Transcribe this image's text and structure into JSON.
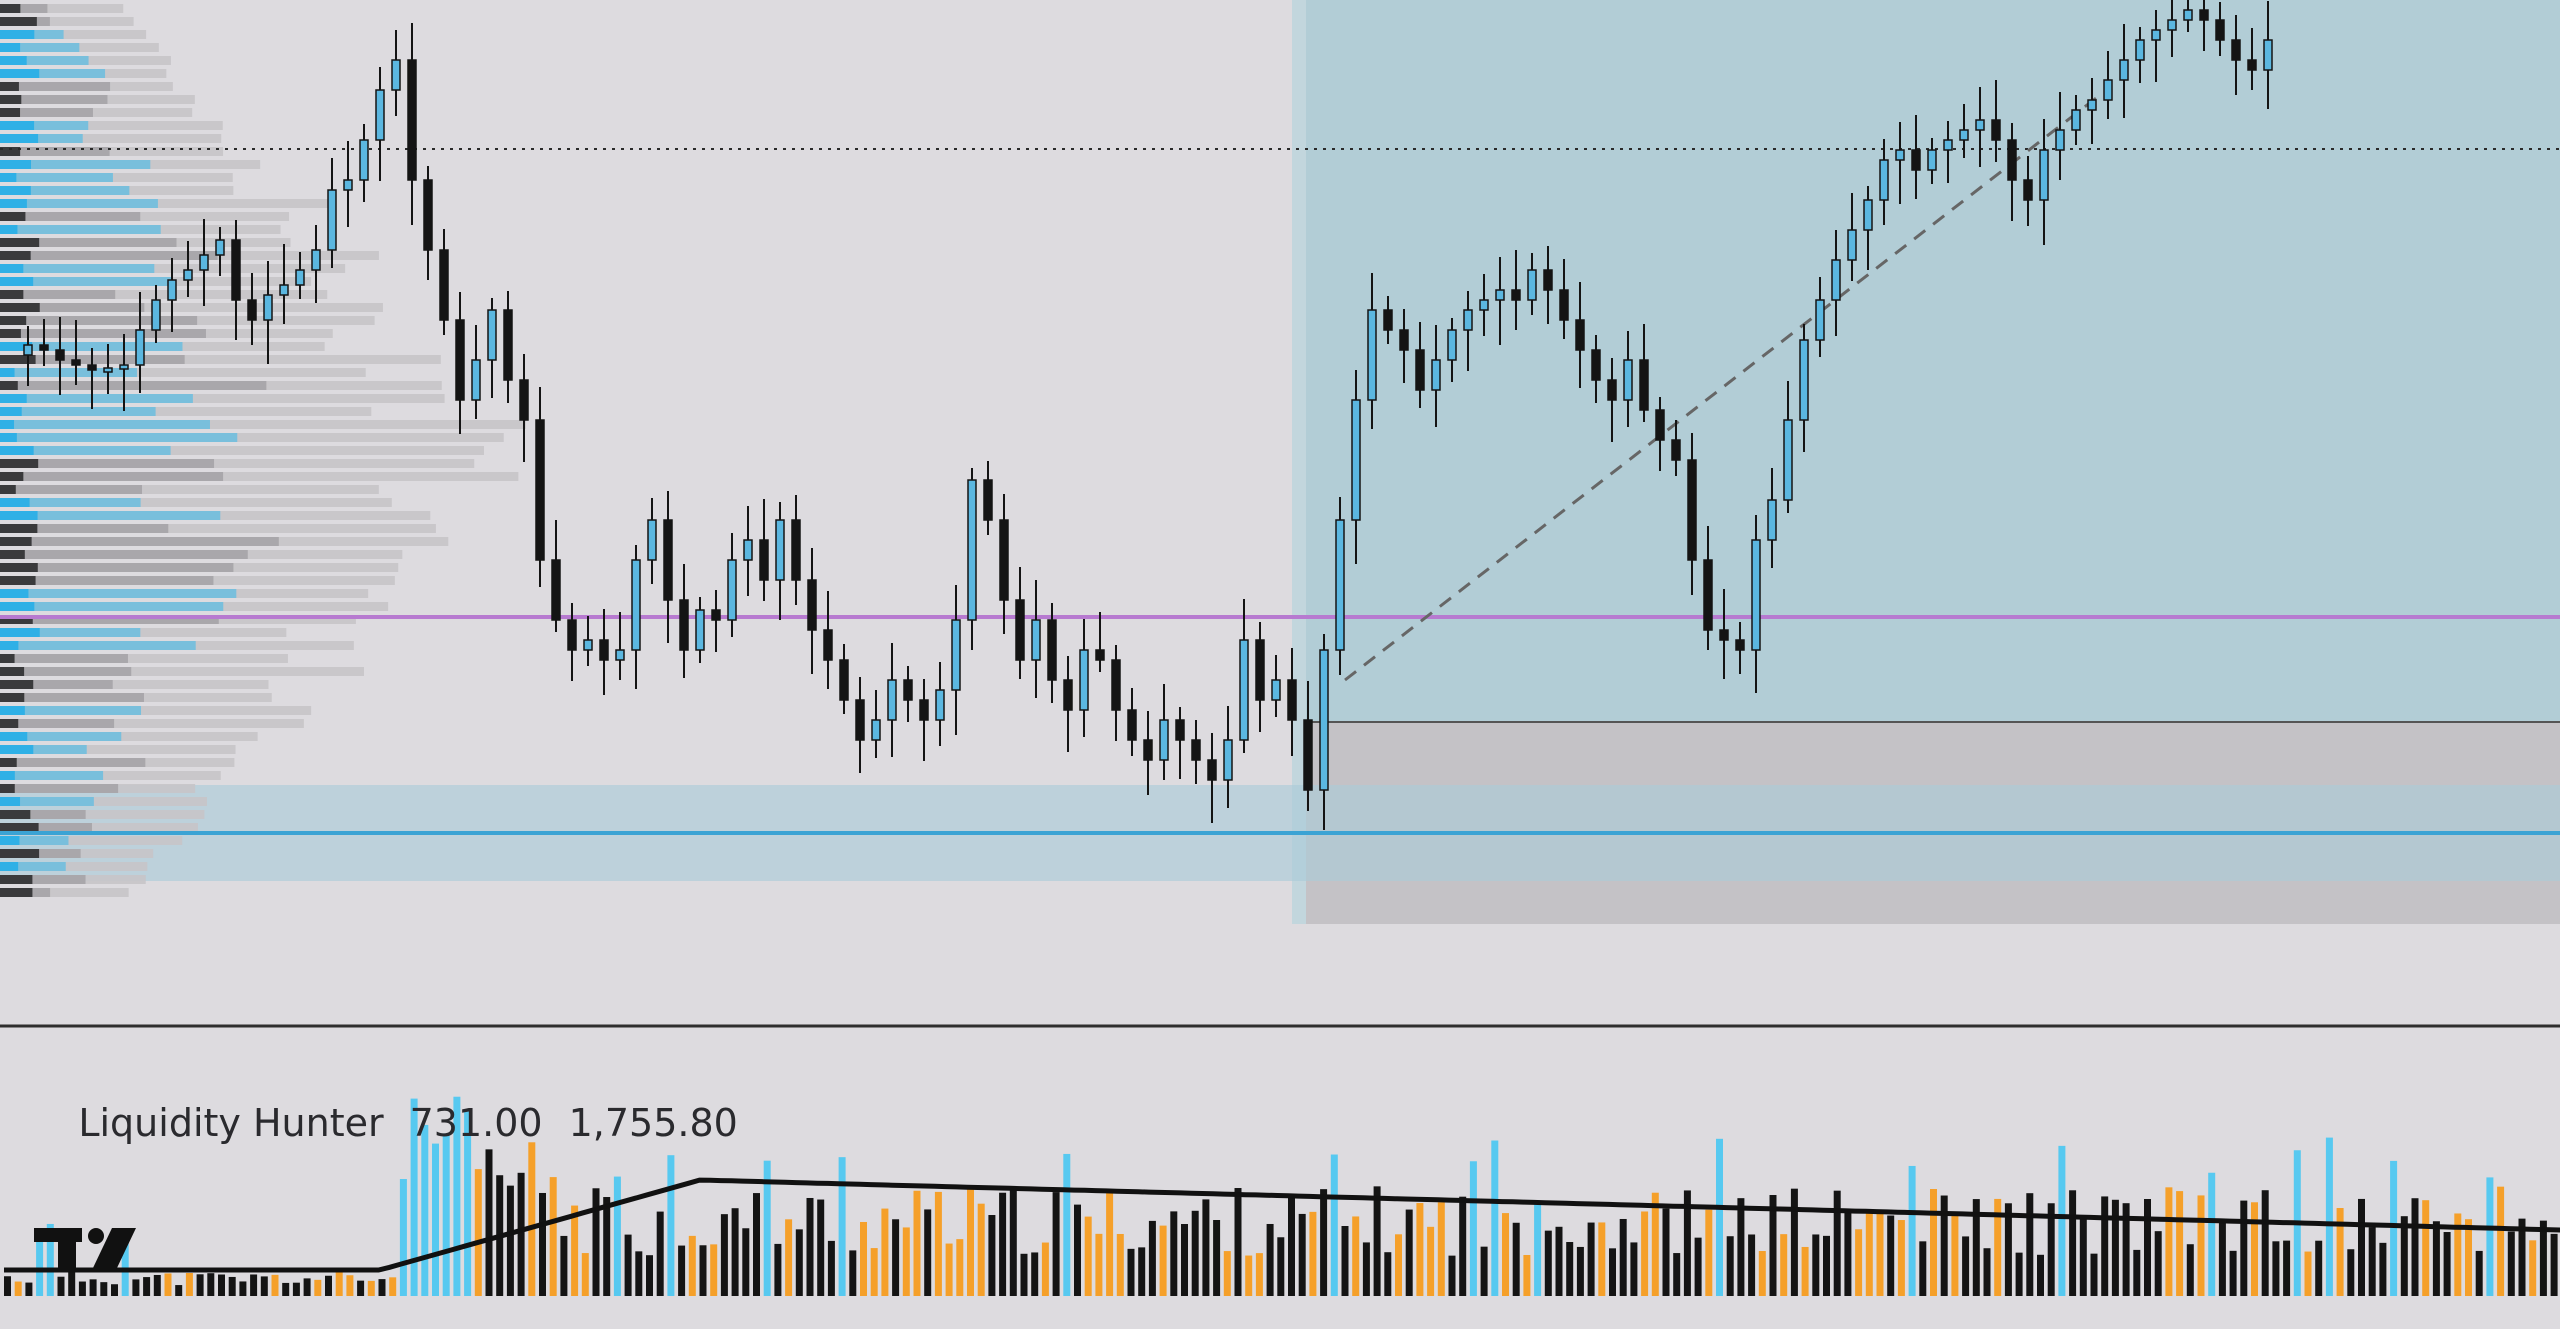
{
  "indicator": {
    "name": "Liquidity Hunter",
    "value_1": "731.00",
    "value_2": "1,755.80"
  },
  "logo": {
    "icon": "tradingview-logo-icon"
  },
  "colors": {
    "background": "#dddbdf",
    "candle_up": "#5bb7e0",
    "candle_down": "#141414",
    "zone_blue": "#a9cbd8",
    "zone_gray": "#bcb9bd",
    "support_line": "#3ba3d4",
    "magenta_line": "#b77ad0",
    "volume_orange": "#f5a02a",
    "volume_cyan": "#57c9f0",
    "volume_black": "#141414",
    "volume_ma": "#111111"
  },
  "chart_data": {
    "type": "candlestick",
    "price_lines": {
      "dotted_high": 0.79,
      "magenta_level": 0.27,
      "blue_support": 0.07
    },
    "bar_count": 96
  }
}
